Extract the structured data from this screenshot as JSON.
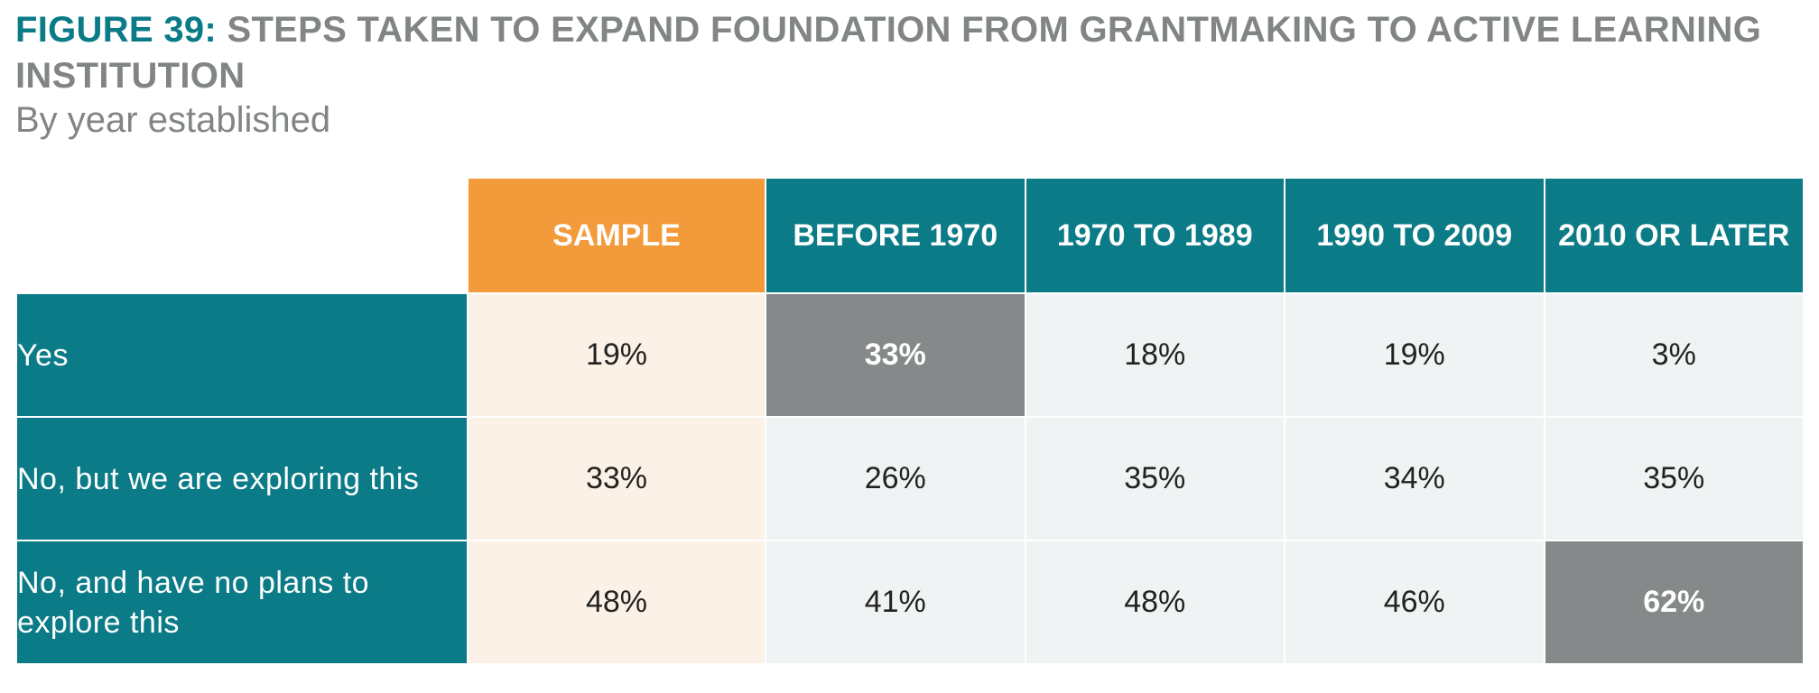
{
  "chart_data": {
    "type": "table",
    "title_prefix": "FIGURE 39:",
    "title": "STEPS TAKEN TO EXPAND FOUNDATION FROM GRANTMAKING TO ACTIVE LEARNING INSTITUTION",
    "subtitle": "By year established",
    "columns": [
      "SAMPLE",
      "BEFORE 1970",
      "1970 TO 1989",
      "1990 TO 2009",
      "2010 OR LATER"
    ],
    "rows": [
      {
        "label": "Yes",
        "values": [
          "19%",
          "33%",
          "18%",
          "19%",
          "3%"
        ],
        "highlight": [
          1
        ]
      },
      {
        "label": "No, but we are exploring this",
        "values": [
          "33%",
          "26%",
          "35%",
          "34%",
          "35%"
        ],
        "highlight": []
      },
      {
        "label": "No, and have no plans to explore this",
        "values": [
          "48%",
          "41%",
          "48%",
          "46%",
          "62%"
        ],
        "highlight": [
          4
        ]
      }
    ],
    "colors": {
      "header_teal": "#0a7b87",
      "sample_orange": "#f39a3a",
      "sample_cell_bg": "#fcf1e6",
      "cell_bg": "#f0f3f4",
      "highlight_gray": "#858989",
      "title_gray": "#828586"
    }
  }
}
